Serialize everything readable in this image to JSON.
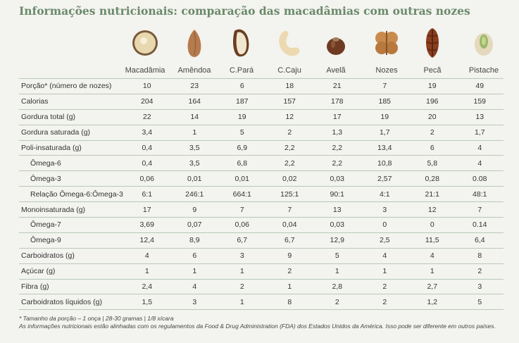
{
  "title": "Informações nutricionais: comparação das macadâmias com outras nozes",
  "nuts": [
    {
      "name": "Macadâmia",
      "icon": "macadamia-icon"
    },
    {
      "name": "Amêndoa",
      "icon": "almond-icon"
    },
    {
      "name": "C.Pará",
      "icon": "brazil-nut-icon"
    },
    {
      "name": "C.Caju",
      "icon": "cashew-icon"
    },
    {
      "name": "Avelã",
      "icon": "hazelnut-icon"
    },
    {
      "name": "Nozes",
      "icon": "walnut-icon"
    },
    {
      "name": "Pecã",
      "icon": "pecan-icon"
    },
    {
      "name": "Pistache",
      "icon": "pistachio-icon"
    }
  ],
  "rows": [
    {
      "label": "Porção* (número de nozes)",
      "values": [
        "10",
        "23",
        "6",
        "18",
        "21",
        "7",
        "19",
        "49"
      ]
    },
    {
      "label": "Calorias",
      "values": [
        "204",
        "164",
        "187",
        "157",
        "178",
        "185",
        "196",
        "159"
      ]
    },
    {
      "label": "Gordura total (g)",
      "values": [
        "22",
        "14",
        "19",
        "12",
        "17",
        "19",
        "20",
        "13"
      ]
    },
    {
      "label": "Gordura saturada (g)",
      "values": [
        "3,4",
        "1",
        "5",
        "2",
        "1,3",
        "1,7",
        "2",
        "1,7"
      ]
    },
    {
      "label": "Poli-insaturada (g)",
      "values": [
        "0,4",
        "3,5",
        "6,9",
        "2,2",
        "2,2",
        "13,4",
        "6",
        "4"
      ]
    },
    {
      "label": "Ômega-6",
      "sub": true,
      "values": [
        "0,4",
        "3,5",
        "6,8",
        "2,2",
        "2,2",
        "10,8",
        "5,8",
        "4"
      ]
    },
    {
      "label": "Ômega-3",
      "sub": true,
      "values": [
        "0,06",
        "0,01",
        "0,01",
        "0,02",
        "0,03",
        "2,57",
        "0,28",
        "0.08"
      ]
    },
    {
      "label": "Relação Ômega-6:Ômega-3",
      "sub": true,
      "values": [
        "6:1",
        "246:1",
        "664:1",
        "125:1",
        "90:1",
        "4:1",
        "21:1",
        "48:1"
      ]
    },
    {
      "label": "Monoinsaturada  (g)",
      "values": [
        "17",
        "9",
        "7",
        "7",
        "13",
        "3",
        "12",
        "7"
      ]
    },
    {
      "label": "Ômega-7",
      "sub": true,
      "values": [
        "3,69",
        "0,07",
        "0,06",
        "0,04",
        "0,03",
        "0",
        "0",
        "0.14"
      ]
    },
    {
      "label": "Ômega-9",
      "sub": true,
      "values": [
        "12,4",
        "8,9",
        "6,7",
        "6,7",
        "12,9",
        "2,5",
        "11,5",
        "6,4"
      ]
    },
    {
      "label": "Carboidratos (g)",
      "values": [
        "4",
        "6",
        "3",
        "9",
        "5",
        "4",
        "4",
        "8"
      ]
    },
    {
      "label": "Açúcar (g)",
      "values": [
        "1",
        "1",
        "1",
        "2",
        "1",
        "1",
        "1",
        "2"
      ]
    },
    {
      "label": "Fibra (g)",
      "values": [
        "2,4",
        "4",
        "2",
        "1",
        "2,8",
        "2",
        "2,7",
        "3"
      ]
    },
    {
      "label": "Carboidratos líquidos (g)",
      "values": [
        "1,5",
        "3",
        "1",
        "8",
        "2",
        "2",
        "1,2",
        "5"
      ]
    }
  ],
  "footnote": {
    "serving": "*  Tamanho da porção – 1 onça | 28-30 gramas | 1/8 xícara",
    "fda": "As informações nutricionais estão alinhadas com os regulamentos da Food & Drug Administration (FDA) dos Estados Unidos da América. Isso pode ser diferente em outros países."
  }
}
